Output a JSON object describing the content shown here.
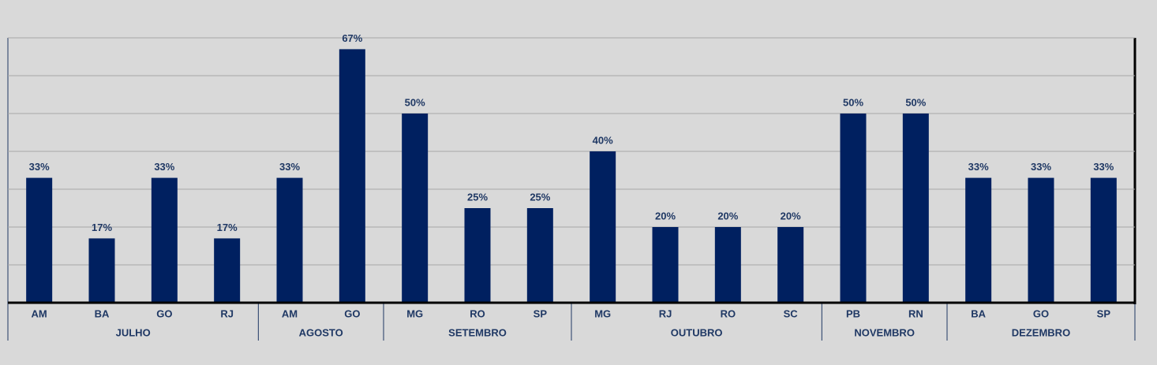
{
  "chart_data": {
    "type": "bar",
    "color": "#002060",
    "ylim": [
      0,
      70
    ],
    "yticks": [
      0,
      10,
      20,
      30,
      40,
      50,
      60,
      70
    ],
    "grid": true,
    "groups": [
      {
        "name": "JULHO",
        "categories": [
          "AM",
          "BA",
          "GO",
          "RJ"
        ],
        "values": [
          33,
          17,
          33,
          17
        ],
        "value_labels": [
          "33%",
          "17%",
          "33%",
          "17%"
        ]
      },
      {
        "name": "AGOSTO",
        "categories": [
          "AM",
          "GO"
        ],
        "values": [
          33,
          67
        ],
        "value_labels": [
          "33%",
          "67%"
        ]
      },
      {
        "name": "SETEMBRO",
        "categories": [
          "MG",
          "RO",
          "SP"
        ],
        "values": [
          50,
          25,
          25
        ],
        "value_labels": [
          "50%",
          "25%",
          "25%"
        ]
      },
      {
        "name": "OUTUBRO",
        "categories": [
          "MG",
          "RJ",
          "RO",
          "SC"
        ],
        "values": [
          40,
          20,
          20,
          20
        ],
        "value_labels": [
          "40%",
          "20%",
          "20%",
          "20%"
        ]
      },
      {
        "name": "NOVEMBRO",
        "categories": [
          "PB",
          "RN"
        ],
        "values": [
          50,
          50
        ],
        "value_labels": [
          "50%",
          "50%"
        ]
      },
      {
        "name": "DEZEMBRO",
        "categories": [
          "BA",
          "GO",
          "SP"
        ],
        "values": [
          33,
          33,
          33
        ],
        "value_labels": [
          "33%",
          "33%",
          "33%"
        ]
      }
    ]
  }
}
